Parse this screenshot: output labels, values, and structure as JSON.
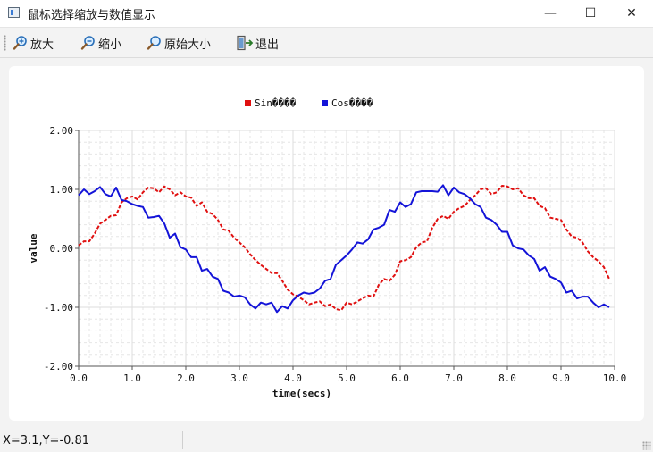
{
  "window": {
    "title": "鼠标选择缩放与数值显示",
    "minimize_glyph": "—",
    "maximize_glyph": "☐",
    "close_glyph": "✕"
  },
  "toolbar": {
    "zoom_in_label": "放大",
    "zoom_out_label": "缩小",
    "original_size_label": "原始大小",
    "exit_label": "退出"
  },
  "status": {
    "coords": "X=3.1,Y=-0.81"
  },
  "chart_data": {
    "type": "line",
    "xlabel": "time(secs)",
    "ylabel": "value",
    "xlim": [
      0,
      10
    ],
    "ylim": [
      -2,
      2
    ],
    "xticks": [
      "0.0",
      "1.0",
      "2.0",
      "3.0",
      "4.0",
      "5.0",
      "6.0",
      "7.0",
      "8.0",
      "9.0",
      "10.0"
    ],
    "yticks": [
      "2.00",
      "1.00",
      "0.00",
      "-1.00",
      "-2.00"
    ],
    "grid": true,
    "legend_position": "top-center",
    "series": [
      {
        "name": "Sin����",
        "color": "#e01010",
        "style": "dashed",
        "x": [
          0,
          0.1,
          0.2,
          0.3,
          0.4,
          0.5,
          0.6,
          0.7,
          0.8,
          0.9,
          1.0,
          1.1,
          1.2,
          1.3,
          1.4,
          1.5,
          1.6,
          1.7,
          1.8,
          1.9,
          2.0,
          2.1,
          2.2,
          2.3,
          2.4,
          2.5,
          2.6,
          2.7,
          2.8,
          2.9,
          3.0,
          3.1,
          3.2,
          3.3,
          3.4,
          3.5,
          3.6,
          3.7,
          3.8,
          3.9,
          4.0,
          4.1,
          4.2,
          4.3,
          4.4,
          4.5,
          4.6,
          4.7,
          4.8,
          4.9,
          5.0,
          5.1,
          5.2,
          5.3,
          5.4,
          5.5,
          5.6,
          5.7,
          5.8,
          5.9,
          6.0,
          6.1,
          6.2,
          6.3,
          6.4,
          6.5,
          6.6,
          6.7,
          6.8,
          6.9,
          7.0,
          7.1,
          7.2,
          7.3,
          7.4,
          7.5,
          7.6,
          7.7,
          7.8,
          7.9,
          8.0,
          8.1,
          8.2,
          8.3,
          8.4,
          8.5,
          8.6,
          8.7,
          8.8,
          8.9,
          9.0,
          9.1,
          9.2,
          9.3,
          9.4,
          9.5,
          9.6,
          9.7,
          9.8,
          9.9
        ],
        "y": [
          0.05,
          0.12,
          0.12,
          0.25,
          0.42,
          0.48,
          0.55,
          0.56,
          0.78,
          0.85,
          0.88,
          0.83,
          0.95,
          1.03,
          1.02,
          0.95,
          1.05,
          1.0,
          0.9,
          0.95,
          0.88,
          0.86,
          0.72,
          0.78,
          0.62,
          0.58,
          0.48,
          0.32,
          0.3,
          0.18,
          0.1,
          0.02,
          -0.1,
          -0.2,
          -0.28,
          -0.35,
          -0.42,
          -0.42,
          -0.55,
          -0.7,
          -0.78,
          -0.82,
          -0.88,
          -0.95,
          -0.92,
          -0.9,
          -0.98,
          -0.95,
          -1.03,
          -1.05,
          -0.92,
          -0.95,
          -0.9,
          -0.85,
          -0.8,
          -0.82,
          -0.62,
          -0.52,
          -0.55,
          -0.45,
          -0.22,
          -0.2,
          -0.15,
          0.02,
          0.1,
          0.12,
          0.35,
          0.5,
          0.55,
          0.5,
          0.62,
          0.68,
          0.72,
          0.82,
          0.9,
          1.0,
          1.02,
          0.92,
          0.95,
          1.06,
          1.05,
          1.0,
          1.02,
          0.9,
          0.85,
          0.85,
          0.72,
          0.68,
          0.52,
          0.5,
          0.48,
          0.32,
          0.2,
          0.18,
          0.1,
          -0.05,
          -0.15,
          -0.22,
          -0.32,
          -0.52
        ]
      },
      {
        "name": "Cos����",
        "color": "#1414d8",
        "style": "solid",
        "x": [
          0,
          0.1,
          0.2,
          0.3,
          0.4,
          0.5,
          0.6,
          0.7,
          0.8,
          0.9,
          1.0,
          1.1,
          1.2,
          1.3,
          1.4,
          1.5,
          1.6,
          1.7,
          1.8,
          1.9,
          2.0,
          2.1,
          2.2,
          2.3,
          2.4,
          2.5,
          2.6,
          2.7,
          2.8,
          2.9,
          3.0,
          3.1,
          3.2,
          3.3,
          3.4,
          3.5,
          3.6,
          3.7,
          3.8,
          3.9,
          4.0,
          4.1,
          4.2,
          4.3,
          4.4,
          4.5,
          4.6,
          4.7,
          4.8,
          4.9,
          5.0,
          5.1,
          5.2,
          5.3,
          5.4,
          5.5,
          5.6,
          5.7,
          5.8,
          5.9,
          6.0,
          6.1,
          6.2,
          6.3,
          6.4,
          6.5,
          6.6,
          6.7,
          6.8,
          6.9,
          7.0,
          7.1,
          7.2,
          7.3,
          7.4,
          7.5,
          7.6,
          7.7,
          7.8,
          7.9,
          8.0,
          8.1,
          8.2,
          8.3,
          8.4,
          8.5,
          8.6,
          8.7,
          8.8,
          8.9,
          9.0,
          9.1,
          9.2,
          9.3,
          9.4,
          9.5,
          9.6,
          9.7,
          9.8,
          9.9
        ],
        "y": [
          0.9,
          1.0,
          0.92,
          0.97,
          1.04,
          0.92,
          0.88,
          1.03,
          0.82,
          0.8,
          0.75,
          0.72,
          0.7,
          0.52,
          0.53,
          0.55,
          0.42,
          0.18,
          0.25,
          0.02,
          -0.02,
          -0.15,
          -0.15,
          -0.38,
          -0.35,
          -0.48,
          -0.52,
          -0.72,
          -0.75,
          -0.82,
          -0.8,
          -0.83,
          -0.95,
          -1.02,
          -0.92,
          -0.95,
          -0.92,
          -1.08,
          -0.98,
          -1.02,
          -0.88,
          -0.8,
          -0.75,
          -0.77,
          -0.75,
          -0.68,
          -0.55,
          -0.52,
          -0.28,
          -0.2,
          -0.12,
          -0.02,
          0.1,
          0.08,
          0.15,
          0.32,
          0.35,
          0.4,
          0.65,
          0.62,
          0.78,
          0.7,
          0.75,
          0.95,
          0.97,
          0.97,
          0.97,
          0.96,
          1.07,
          0.9,
          1.03,
          0.95,
          0.92,
          0.85,
          0.75,
          0.7,
          0.52,
          0.48,
          0.4,
          0.28,
          0.28,
          0.05,
          0.0,
          -0.02,
          -0.12,
          -0.18,
          -0.38,
          -0.32,
          -0.48,
          -0.52,
          -0.58,
          -0.75,
          -0.72,
          -0.85,
          -0.82,
          -0.82,
          -0.92,
          -1.0,
          -0.95,
          -1.0
        ]
      }
    ]
  }
}
